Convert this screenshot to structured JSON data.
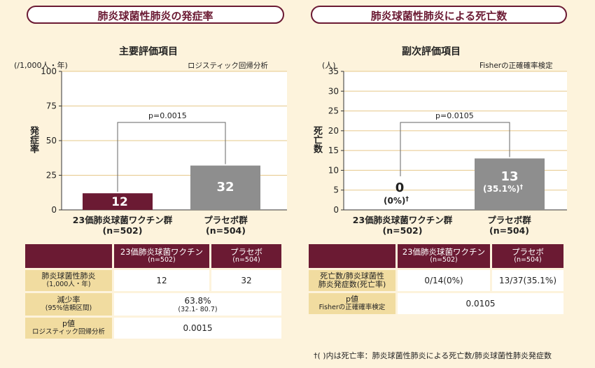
{
  "left": {
    "panel_title": "肺炎球菌性肺炎の発症率",
    "chart_title": "主要評価項目",
    "analysis_note": "ロジスティック回帰分析",
    "y_unit": "(/1,000人・年)",
    "ylabel": "発症率",
    "p_label": "p=0.0015",
    "bar_labels": [
      "12",
      "32"
    ],
    "group_labels": [
      {
        "name": "23価肺炎球菌ワクチン群",
        "n": "(n=502)"
      },
      {
        "name": "プラセボ群",
        "n": "(n=504)"
      }
    ],
    "table": {
      "headers": [
        {
          "line1": "23価肺炎球菌ワクチン",
          "line2": "(n=502)"
        },
        {
          "line1": "プラセボ",
          "line2": "(n=504)"
        }
      ],
      "rows": [
        {
          "label1": "肺炎球菌性肺炎",
          "label2": "(1,000人・年)",
          "v1": "12",
          "v2": "32"
        },
        {
          "label1": "減少率",
          "label2": "(95%信頼区間)",
          "merged1": "63.8%",
          "merged2": "(32.1- 80.7)"
        },
        {
          "label1": "p値",
          "label2": "ロジスティック回帰分析",
          "merged1": "0.0015"
        }
      ]
    }
  },
  "right": {
    "panel_title": "肺炎球菌性肺炎による死亡数",
    "chart_title": "副次評価項目",
    "analysis_note": "Fisherの正確確率検定",
    "y_unit": "(人)",
    "ylabel": "死亡数",
    "p_label": "p=0.0105",
    "bar_labels": [
      {
        "count": "0",
        "pct": "(0%)",
        "mark": "†"
      },
      {
        "count": "13",
        "pct": "(35.1%)",
        "mark": "†"
      }
    ],
    "group_labels": [
      {
        "name": "23価肺炎球菌ワクチン群",
        "n": "(n=502)"
      },
      {
        "name": "プラセボ群",
        "n": "(n=504)"
      }
    ],
    "table": {
      "headers": [
        {
          "line1": "23価肺炎球菌ワクチン",
          "line2": "(n=502)"
        },
        {
          "line1": "プラセボ",
          "line2": "(n=504)"
        }
      ],
      "rows": [
        {
          "label1": "死亡数/肺炎球菌性",
          "label2": "肺炎発症数(死亡率)",
          "v1": "0/14(0%)",
          "v2": "13/37(35.1%)"
        },
        {
          "label1": "p値",
          "label2": "Fisherの正確確率検定",
          "merged1": "0.0105"
        }
      ]
    },
    "footnote": "†( )内は死亡率：肺炎球菌性肺炎による死亡数/肺炎球菌性肺炎発症数"
  },
  "colors": {
    "accent": "#6b1a33",
    "placebo_bar": "#8e8e8e",
    "label_cell": "#f1dca0",
    "background": "#fdf3dc"
  },
  "chart_data": [
    {
      "type": "bar",
      "title": "主要評価項目",
      "categories": [
        "23価肺炎球菌ワクチン群 (n=502)",
        "プラセボ群 (n=504)"
      ],
      "values": [
        12,
        32
      ],
      "ylabel": "発症率",
      "ylim": [
        0,
        100
      ],
      "yticks": [
        0,
        25,
        50,
        75,
        100
      ],
      "grid": true
    },
    {
      "type": "bar",
      "title": "副次評価項目",
      "categories": [
        "23価肺炎球菌ワクチン群 (n=502)",
        "プラセボ群 (n=504)"
      ],
      "values": [
        0,
        13
      ],
      "ylabel": "死亡数",
      "ylim": [
        0,
        35
      ],
      "yticks": [
        0,
        5,
        10,
        15,
        20,
        25,
        30,
        35
      ],
      "grid": true
    }
  ]
}
